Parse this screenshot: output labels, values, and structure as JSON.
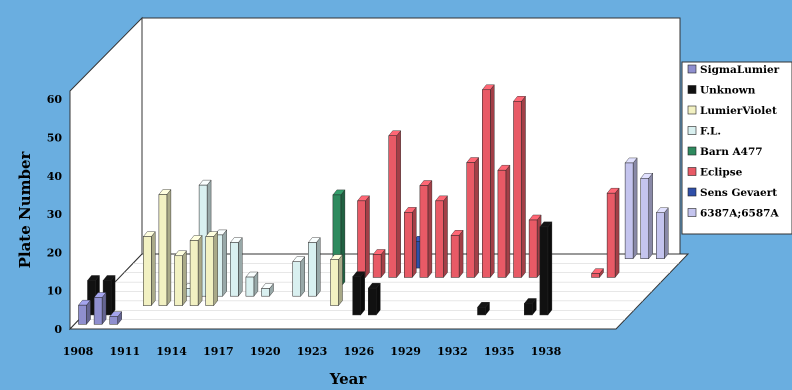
{
  "chart_data": {
    "type": "bar",
    "title": "",
    "xlabel": "Year",
    "ylabel": "Plate Number",
    "ylim": [
      0,
      60
    ],
    "yticks": [
      0,
      10,
      20,
      30,
      40,
      50,
      60
    ],
    "xticks": [
      "1908",
      "1911",
      "1914",
      "1917",
      "1920",
      "1923",
      "1926",
      "1929",
      "1932",
      "1935",
      "1938"
    ],
    "x": [
      "1908",
      "1909",
      "1910",
      "1911",
      "1912",
      "1913",
      "1914",
      "1915",
      "1916",
      "1917",
      "1918",
      "1919",
      "1920",
      "1921",
      "1922",
      "1923",
      "1924",
      "1925",
      "1926",
      "1927",
      "1928",
      "1929",
      "1930",
      "1931",
      "1932",
      "1933",
      "1934",
      "1935",
      "1936",
      "1937",
      "1938",
      "1939",
      "1940",
      "1941"
    ],
    "grid": false,
    "legend_position": "right",
    "series": [
      {
        "name": "SigmaLumier",
        "color": "#8f8fcf",
        "values": [
          5,
          7,
          2,
          null,
          null,
          null,
          null,
          null,
          null,
          null,
          null,
          null,
          null,
          null,
          null,
          null,
          null,
          null,
          null,
          null,
          null,
          null,
          null,
          null,
          null,
          null,
          null,
          null,
          null,
          null,
          null,
          null,
          null,
          null
        ]
      },
      {
        "name": "Unknown",
        "color": "#111111",
        "values": [
          9,
          9,
          null,
          null,
          null,
          null,
          null,
          null,
          null,
          null,
          null,
          null,
          null,
          null,
          null,
          null,
          null,
          10,
          7,
          null,
          null,
          null,
          null,
          null,
          null,
          2,
          null,
          null,
          3,
          23,
          null,
          null,
          null,
          null
        ]
      },
      {
        "name": "LumierViolet",
        "color": "#f2f1c2",
        "values": [
          null,
          null,
          null,
          18,
          29,
          13,
          17,
          18,
          null,
          null,
          null,
          null,
          null,
          null,
          null,
          12,
          null,
          null,
          null,
          null,
          null,
          null,
          null,
          null,
          null,
          null,
          null,
          null,
          null,
          null,
          null,
          null,
          null,
          null
        ]
      },
      {
        "name": "F.L.",
        "color": "#d9f0f0",
        "values": [
          null,
          null,
          null,
          null,
          null,
          2,
          29,
          16,
          14,
          5,
          2,
          null,
          9,
          14,
          null,
          null,
          null,
          null,
          null,
          null,
          null,
          null,
          null,
          null,
          null,
          null,
          null,
          null,
          null,
          null,
          null,
          null,
          null,
          null
        ]
      },
      {
        "name": "Barn A477",
        "color": "#2e8a5e",
        "values": [
          null,
          null,
          null,
          null,
          null,
          null,
          null,
          null,
          null,
          null,
          null,
          null,
          null,
          null,
          24,
          null,
          null,
          null,
          null,
          null,
          null,
          null,
          null,
          null,
          null,
          null,
          null,
          null,
          null,
          null,
          null,
          null,
          null,
          null
        ]
      },
      {
        "name": "Eclipse",
        "color": "#e85a66",
        "values": [
          null,
          null,
          null,
          null,
          null,
          null,
          null,
          null,
          null,
          null,
          null,
          null,
          null,
          null,
          null,
          20,
          6,
          37,
          17,
          24,
          20,
          11,
          30,
          49,
          28,
          46,
          15,
          null,
          null,
          null,
          1,
          22,
          null,
          null
        ]
      },
      {
        "name": "Sens Gevaert",
        "color": "#2f4fa8",
        "values": [
          null,
          null,
          null,
          null,
          null,
          null,
          null,
          null,
          null,
          null,
          null,
          null,
          null,
          null,
          null,
          null,
          null,
          null,
          7,
          null,
          null,
          null,
          null,
          null,
          null,
          null,
          null,
          null,
          null,
          null,
          null,
          null,
          null,
          null
        ]
      },
      {
        "name": "6387A;6587A",
        "color": "#c4c4ee",
        "values": [
          null,
          null,
          null,
          null,
          null,
          null,
          null,
          null,
          null,
          null,
          null,
          null,
          null,
          null,
          null,
          null,
          null,
          null,
          null,
          null,
          null,
          null,
          null,
          null,
          null,
          null,
          null,
          null,
          null,
          null,
          null,
          25,
          21,
          12
        ]
      }
    ]
  }
}
